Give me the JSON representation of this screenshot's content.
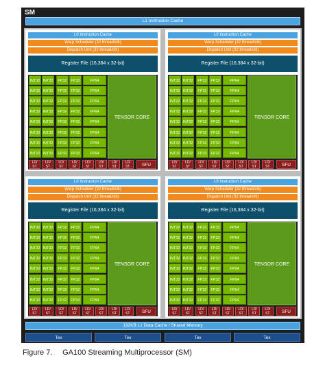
{
  "sm_label": "SM",
  "l1_instruction_cache": "L1 Instruction Cache",
  "partition": {
    "l0_cache": "L0 Instruction Cache",
    "warp_scheduler": "Warp Scheduler (32 thread/clk)",
    "dispatch_unit": "Dispatch Unit (32 thread/clk)",
    "register_file": "Register File (16,384 x 32-bit)",
    "int32": "INT32",
    "fp32": "FP32",
    "fp64": "FP64",
    "tensor_core": "TENSOR CORE",
    "ld": "LD/",
    "st": "ST",
    "sfu": "SFU"
  },
  "l1_data_cache": "192KB L1 Data Cache / Shared Memory",
  "tex": [
    "Tex",
    "Tex",
    "Tex",
    "Tex"
  ],
  "caption": {
    "figure": "Figure 7.",
    "title": "GA100 Streaming Multiprocessor (SM)"
  },
  "colors": {
    "background": "#1d1d1d",
    "cache": "#4aa3df",
    "scheduler": "#f08a1c",
    "register_file": "#0e4f6b",
    "core": "#76b900",
    "tensor": "#5c9a1c",
    "ldst_sfu": "#8a1d1d",
    "tex": "#1c4e8c"
  }
}
